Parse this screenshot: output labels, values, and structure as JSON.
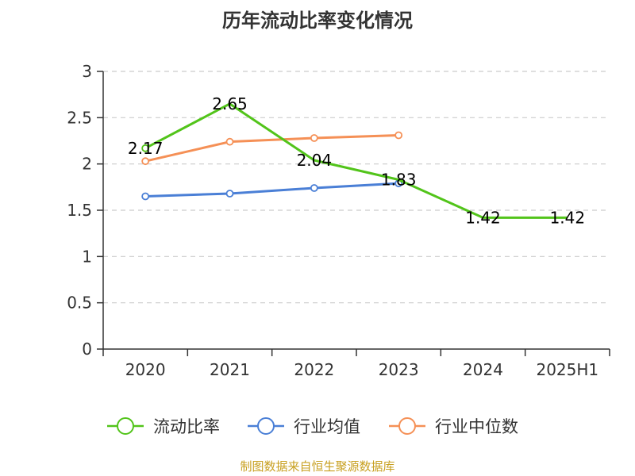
{
  "title": "历年流动比率变化情况",
  "source": "制图数据来自恒生聚源数据库",
  "chart_data": {
    "type": "line",
    "categories": [
      "2020",
      "2021",
      "2022",
      "2023",
      "2024",
      "2025H1"
    ],
    "ylim": [
      0,
      3
    ],
    "yticks": [
      0,
      0.5,
      1,
      1.5,
      2,
      2.5,
      3
    ],
    "ytick_labels": [
      "0",
      "0.5",
      "1",
      "1.5",
      "2",
      "2.5",
      "3"
    ],
    "grid": true,
    "legend_position": "bottom",
    "series": [
      {
        "name": "流动比率",
        "color": "#52c41a",
        "values": [
          2.17,
          2.65,
          2.04,
          1.83,
          1.42,
          1.42
        ],
        "labels": [
          "2.17",
          "2.65",
          "2.04",
          "1.83",
          "1.42",
          "1.42"
        ],
        "show_labels": true,
        "markers": "first-only"
      },
      {
        "name": "行业均值",
        "color": "#4a7fd6",
        "values": [
          1.65,
          1.68,
          1.74,
          1.79,
          null,
          null
        ],
        "show_labels": false,
        "markers": "all"
      },
      {
        "name": "行业中位数",
        "color": "#f59056",
        "values": [
          2.03,
          2.24,
          2.28,
          2.31,
          null,
          null
        ],
        "show_labels": false,
        "markers": "all"
      }
    ]
  }
}
